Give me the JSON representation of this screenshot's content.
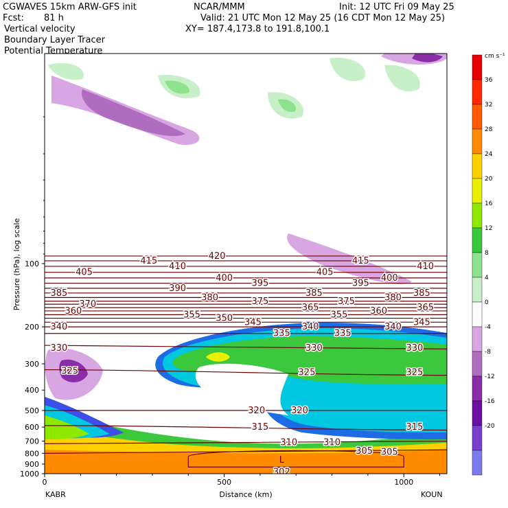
{
  "header": {
    "model": "CGWAVES 15km ARW-GFS init",
    "org": "NCAR/MMM",
    "init": "Init: 12 UTC Fri 09 May 25",
    "fcst_label": "Fcst:",
    "fcst_value": "81 h",
    "valid": "Valid: 21 UTC Mon 12 May 25 (16 CDT Mon 12 May 25)",
    "xy": "XY= 187.4,173.8 to 191.8,100.1",
    "field1": "Vertical velocity",
    "field2": "Boundary Layer Tracer",
    "field3": "Potential Temperature"
  },
  "colors": {
    "theta": "#6b0000",
    "ground": "#ff8c00"
  },
  "chart_data": {
    "type": "heatmap",
    "title": "Vertical velocity",
    "xlabel": "Distance (km)",
    "ylabel": "Pressure (hPa), log scale",
    "x_ticks": [
      0,
      500,
      1000
    ],
    "xlim": [
      0,
      1120
    ],
    "y_ticks": [
      100,
      200,
      300,
      400,
      500,
      600,
      700,
      800,
      900,
      1000
    ],
    "ylim": [
      1000,
      10
    ],
    "y_scale": "log",
    "left_endpoint": "KABR",
    "right_endpoint": "KOUN",
    "colorbar": {
      "unit": "cm s⁻¹",
      "levels": [
        -20,
        -16,
        -12,
        -8,
        -4,
        0,
        4,
        8,
        12,
        16,
        20,
        24,
        28,
        32,
        36
      ],
      "colors": [
        "#7b7bef",
        "#7b3fcf",
        "#6a0f9f",
        "#8a2ea8",
        "#b06cbf",
        "#d7a6e3",
        "#ffffff",
        "#c8f0c8",
        "#8ee28e",
        "#3cc83c",
        "#8ee800",
        "#e8f000",
        "#ffd000",
        "#ff8c00",
        "#ff5a00",
        "#ff2a00",
        "#e60000"
      ]
    },
    "theta_levels": [
      302,
      305,
      310,
      315,
      320,
      325,
      330,
      335,
      340,
      345,
      350,
      355,
      360,
      365,
      370,
      375,
      380,
      385,
      390,
      395,
      400,
      405,
      410,
      415,
      420
    ],
    "theta_lines": [
      {
        "level": 420,
        "y": [
          92,
          92
        ]
      },
      {
        "level": 415,
        "y": [
          97,
          97
        ]
      },
      {
        "level": 410,
        "y": [
          103,
          103
        ]
      },
      {
        "level": 405,
        "y": [
          110,
          110
        ]
      },
      {
        "level": 400,
        "y": [
          117,
          117
        ]
      },
      {
        "level": 395,
        "y": [
          124,
          124
        ]
      },
      {
        "level": 390,
        "y": [
          131,
          131
        ]
      },
      {
        "level": 385,
        "y": [
          138,
          138
        ]
      },
      {
        "level": 380,
        "y": [
          145,
          145
        ]
      },
      {
        "level": 375,
        "y": [
          151,
          151
        ]
      },
      {
        "level": 370,
        "y": [
          156,
          156
        ]
      },
      {
        "level": 365,
        "y": [
          162,
          162
        ]
      },
      {
        "level": 360,
        "y": [
          168,
          168
        ]
      },
      {
        "level": 355,
        "y": [
          175,
          175
        ]
      },
      {
        "level": 350,
        "y": [
          182,
          182
        ]
      },
      {
        "level": 345,
        "y": [
          190,
          190
        ]
      },
      {
        "level": 340,
        "y": [
          200,
          200
        ]
      },
      {
        "level": 335,
        "y": [
          215,
          215
        ]
      },
      {
        "level": 330,
        "y": [
          245,
          255
        ]
      },
      {
        "level": 325,
        "y": [
          320,
          340
        ]
      },
      {
        "level": 320,
        "y": [
          500,
          500
        ]
      },
      {
        "level": 315,
        "y": [
          590,
          620
        ]
      },
      {
        "level": 310,
        "y": [
          720,
          700
        ]
      },
      {
        "level": 305,
        "y": [
          800,
          770
        ]
      }
    ],
    "theta_labels": [
      {
        "text": "420",
        "x": 480,
        "p": 92
      },
      {
        "text": "415",
        "x": 290,
        "p": 97
      },
      {
        "text": "415",
        "x": 880,
        "p": 97
      },
      {
        "text": "410",
        "x": 370,
        "p": 103
      },
      {
        "text": "410",
        "x": 1060,
        "p": 103
      },
      {
        "text": "405",
        "x": 110,
        "p": 110
      },
      {
        "text": "405",
        "x": 780,
        "p": 110
      },
      {
        "text": "400",
        "x": 500,
        "p": 117
      },
      {
        "text": "400",
        "x": 960,
        "p": 117
      },
      {
        "text": "395",
        "x": 600,
        "p": 124
      },
      {
        "text": "395",
        "x": 880,
        "p": 124
      },
      {
        "text": "390",
        "x": 370,
        "p": 131
      },
      {
        "text": "385",
        "x": 40,
        "p": 138
      },
      {
        "text": "385",
        "x": 750,
        "p": 138
      },
      {
        "text": "385",
        "x": 1050,
        "p": 138
      },
      {
        "text": "380",
        "x": 460,
        "p": 145
      },
      {
        "text": "380",
        "x": 970,
        "p": 145
      },
      {
        "text": "375",
        "x": 600,
        "p": 151
      },
      {
        "text": "375",
        "x": 840,
        "p": 151
      },
      {
        "text": "370",
        "x": 120,
        "p": 156
      },
      {
        "text": "365",
        "x": 740,
        "p": 162
      },
      {
        "text": "365",
        "x": 1060,
        "p": 162
      },
      {
        "text": "360",
        "x": 80,
        "p": 168
      },
      {
        "text": "360",
        "x": 930,
        "p": 168
      },
      {
        "text": "355",
        "x": 410,
        "p": 175
      },
      {
        "text": "355",
        "x": 820,
        "p": 175
      },
      {
        "text": "350",
        "x": 500,
        "p": 182
      },
      {
        "text": "345",
        "x": 580,
        "p": 190
      },
      {
        "text": "345",
        "x": 1050,
        "p": 190
      },
      {
        "text": "340",
        "x": 40,
        "p": 200
      },
      {
        "text": "340",
        "x": 740,
        "p": 200
      },
      {
        "text": "340",
        "x": 970,
        "p": 200
      },
      {
        "text": "335",
        "x": 660,
        "p": 215
      },
      {
        "text": "335",
        "x": 830,
        "p": 215
      },
      {
        "text": "330",
        "x": 40,
        "p": 252
      },
      {
        "text": "330",
        "x": 750,
        "p": 252
      },
      {
        "text": "330",
        "x": 1030,
        "p": 252
      },
      {
        "text": "325",
        "x": 70,
        "p": 325
      },
      {
        "text": "325",
        "x": 730,
        "p": 330
      },
      {
        "text": "325",
        "x": 1030,
        "p": 330
      },
      {
        "text": "320",
        "x": 590,
        "p": 500
      },
      {
        "text": "320",
        "x": 710,
        "p": 500
      },
      {
        "text": "315",
        "x": 600,
        "p": 600
      },
      {
        "text": "315",
        "x": 1030,
        "p": 600
      },
      {
        "text": "310",
        "x": 680,
        "p": 710
      },
      {
        "text": "310",
        "x": 800,
        "p": 710
      },
      {
        "text": "305",
        "x": 890,
        "p": 780
      },
      {
        "text": "305",
        "x": 960,
        "p": 790
      },
      {
        "text": "302",
        "x": 660,
        "p": 980
      }
    ],
    "low_label": {
      "text": "L",
      "x": 660,
      "p": 860
    },
    "grid": false,
    "legend_placement": "right"
  }
}
